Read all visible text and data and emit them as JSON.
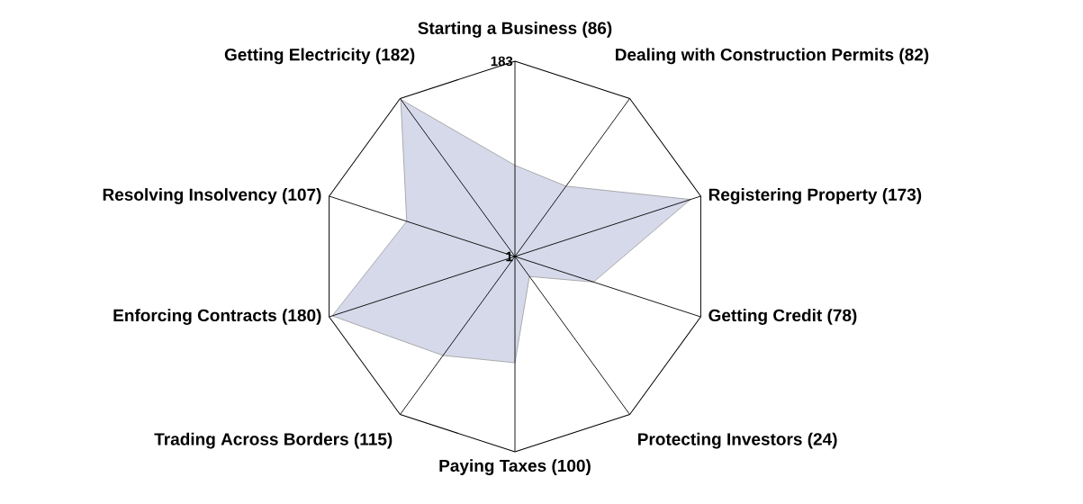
{
  "chart_data": {
    "type": "radar",
    "categories": [
      "Starting a Business (86)",
      "Dealing with Construction Permits (82)",
      "Registering Property (173)",
      "Getting Credit (78)",
      "Protecting Investors (24)",
      "Paying Taxes (100)",
      "Trading Across Borders (115)",
      "Enforcing Contracts (180)",
      "Resolving Insolvency (107)",
      "Getting Electricity (182)"
    ],
    "series": [
      {
        "color": "#d6d9ea",
        "values": [
          86,
          82,
          173,
          78,
          24,
          100,
          115,
          180,
          107,
          182
        ]
      }
    ],
    "ylim": [
      1,
      183
    ],
    "yticks": [
      1,
      183
    ]
  }
}
